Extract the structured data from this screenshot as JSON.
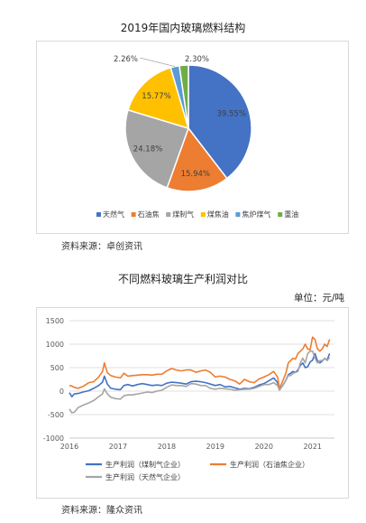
{
  "pie_title": "2019年国内玻璃燃料结构",
  "line_title": "不同燃料玻璃生产利润对比",
  "unit_label": "单位：元/吨",
  "source1": "资料来源：卓创资讯",
  "source2": "资料来源：隆众资讯",
  "chart_data": [
    {
      "type": "pie",
      "title": "2019年国内玻璃燃料结构",
      "slices": [
        {
          "label": "天然气",
          "value": 39.55,
          "display": "39.55%",
          "color": "#4472c4"
        },
        {
          "label": "石油焦",
          "value": 15.94,
          "display": "15.94%",
          "color": "#ed7d31"
        },
        {
          "label": "煤制气",
          "value": 24.18,
          "display": "24.18%",
          "color": "#a5a5a5"
        },
        {
          "label": "煤焦油",
          "value": 15.77,
          "display": "15.77%",
          "color": "#ffc000"
        },
        {
          "label": "焦炉煤气",
          "value": 2.26,
          "display": "2.26%",
          "color": "#5b9bd5"
        },
        {
          "label": "重油",
          "value": 2.3,
          "display": "2.30%",
          "color": "#70ad47"
        }
      ]
    },
    {
      "type": "line",
      "title": "不同燃料玻璃生产利润对比",
      "ylabel": "单位：元/吨",
      "ylim": [
        -1000,
        1500
      ],
      "yticks": [
        -1000,
        -500,
        0,
        500,
        1000,
        1500
      ],
      "xlim": [
        2016,
        2021.45
      ],
      "xticks": [
        2016,
        2017,
        2018,
        2019,
        2020,
        2021
      ],
      "grid": "horizontal",
      "legend": "bottom",
      "series": [
        {
          "name": "生产利润（煤制气企业）",
          "color": "#4472c4",
          "x": [
            2016.0,
            2016.05,
            2016.1,
            2016.18,
            2016.28,
            2016.4,
            2016.5,
            2016.6,
            2016.68,
            2016.72,
            2016.78,
            2016.85,
            2016.95,
            2017.05,
            2017.12,
            2017.2,
            2017.3,
            2017.4,
            2017.5,
            2017.6,
            2017.7,
            2017.8,
            2017.9,
            2018.0,
            2018.1,
            2018.2,
            2018.3,
            2018.4,
            2018.5,
            2018.6,
            2018.7,
            2018.8,
            2018.9,
            2019.0,
            2019.1,
            2019.2,
            2019.3,
            2019.4,
            2019.5,
            2019.6,
            2019.7,
            2019.8,
            2019.9,
            2020.0,
            2020.1,
            2020.2,
            2020.28,
            2020.32,
            2020.38,
            2020.45,
            2020.5,
            2020.55,
            2020.6,
            2020.65,
            2020.7,
            2020.75,
            2020.8,
            2020.85,
            2020.9,
            2020.95,
            2021.0,
            2021.05,
            2021.1,
            2021.15,
            2021.2,
            2021.25,
            2021.3,
            2021.35
          ],
          "y": [
            -30,
            -120,
            -60,
            -50,
            -20,
            10,
            60,
            120,
            190,
            320,
            150,
            60,
            40,
            30,
            120,
            140,
            110,
            140,
            160,
            140,
            120,
            130,
            120,
            170,
            190,
            180,
            170,
            150,
            200,
            210,
            200,
            180,
            150,
            120,
            140,
            90,
            100,
            70,
            40,
            60,
            50,
            80,
            130,
            160,
            220,
            280,
            180,
            40,
            110,
            230,
            350,
            380,
            420,
            400,
            450,
            550,
            600,
            500,
            520,
            620,
            660,
            800,
            650,
            600,
            640,
            700,
            660,
            800
          ]
        },
        {
          "name": "生产利润（石油焦企业）",
          "color": "#ed7d31",
          "x": [
            2016.0,
            2016.05,
            2016.1,
            2016.18,
            2016.28,
            2016.4,
            2016.5,
            2016.6,
            2016.68,
            2016.72,
            2016.78,
            2016.85,
            2016.95,
            2017.05,
            2017.12,
            2017.2,
            2017.3,
            2017.4,
            2017.5,
            2017.6,
            2017.7,
            2017.8,
            2017.9,
            2018.0,
            2018.1,
            2018.2,
            2018.3,
            2018.4,
            2018.5,
            2018.6,
            2018.7,
            2018.8,
            2018.9,
            2019.0,
            2019.1,
            2019.2,
            2019.3,
            2019.4,
            2019.5,
            2019.6,
            2019.7,
            2019.8,
            2019.9,
            2020.0,
            2020.1,
            2020.2,
            2020.28,
            2020.32,
            2020.38,
            2020.45,
            2020.5,
            2020.55,
            2020.6,
            2020.65,
            2020.7,
            2020.75,
            2020.8,
            2020.85,
            2020.9,
            2020.95,
            2021.0,
            2021.05,
            2021.1,
            2021.15,
            2021.2,
            2021.25,
            2021.3,
            2021.35
          ],
          "y": [
            120,
            110,
            80,
            60,
            100,
            180,
            200,
            300,
            420,
            600,
            390,
            330,
            300,
            280,
            380,
            320,
            330,
            340,
            350,
            350,
            340,
            360,
            360,
            430,
            480,
            450,
            430,
            450,
            450,
            400,
            430,
            450,
            400,
            300,
            320,
            300,
            250,
            220,
            150,
            250,
            200,
            180,
            260,
            300,
            350,
            420,
            300,
            60,
            200,
            380,
            600,
            650,
            700,
            680,
            800,
            850,
            900,
            1000,
            900,
            880,
            1150,
            1100,
            900,
            850,
            900,
            1000,
            950,
            1100
          ]
        },
        {
          "name": "生产利润（天然气企业）",
          "color": "#a5a5a5",
          "x": [
            2016.0,
            2016.05,
            2016.1,
            2016.18,
            2016.28,
            2016.4,
            2016.5,
            2016.6,
            2016.68,
            2016.72,
            2016.78,
            2016.85,
            2016.95,
            2017.05,
            2017.12,
            2017.2,
            2017.3,
            2017.4,
            2017.5,
            2017.6,
            2017.7,
            2017.8,
            2017.9,
            2018.0,
            2018.1,
            2018.2,
            2018.3,
            2018.4,
            2018.5,
            2018.6,
            2018.7,
            2018.8,
            2018.9,
            2019.0,
            2019.1,
            2019.2,
            2019.3,
            2019.4,
            2019.5,
            2019.6,
            2019.7,
            2019.8,
            2019.9,
            2020.0,
            2020.1,
            2020.2,
            2020.28,
            2020.32,
            2020.38,
            2020.45,
            2020.5,
            2020.55,
            2020.6,
            2020.65,
            2020.7,
            2020.75,
            2020.8,
            2020.85,
            2020.9,
            2020.95,
            2021.0,
            2021.05,
            2021.1,
            2021.15,
            2021.2,
            2021.25,
            2021.3,
            2021.35
          ],
          "y": [
            -380,
            -460,
            -450,
            -350,
            -300,
            -250,
            -200,
            -120,
            -60,
            50,
            -60,
            -130,
            -160,
            -170,
            -100,
            -80,
            -80,
            -60,
            -40,
            -20,
            -30,
            0,
            20,
            80,
            130,
            120,
            120,
            100,
            160,
            150,
            120,
            120,
            60,
            40,
            60,
            50,
            40,
            20,
            30,
            40,
            40,
            60,
            100,
            140,
            140,
            180,
            120,
            20,
            110,
            230,
            330,
            330,
            380,
            400,
            420,
            600,
            700,
            600,
            800,
            850,
            850,
            700,
            600,
            650,
            650,
            700,
            650,
            720
          ]
        }
      ]
    }
  ]
}
